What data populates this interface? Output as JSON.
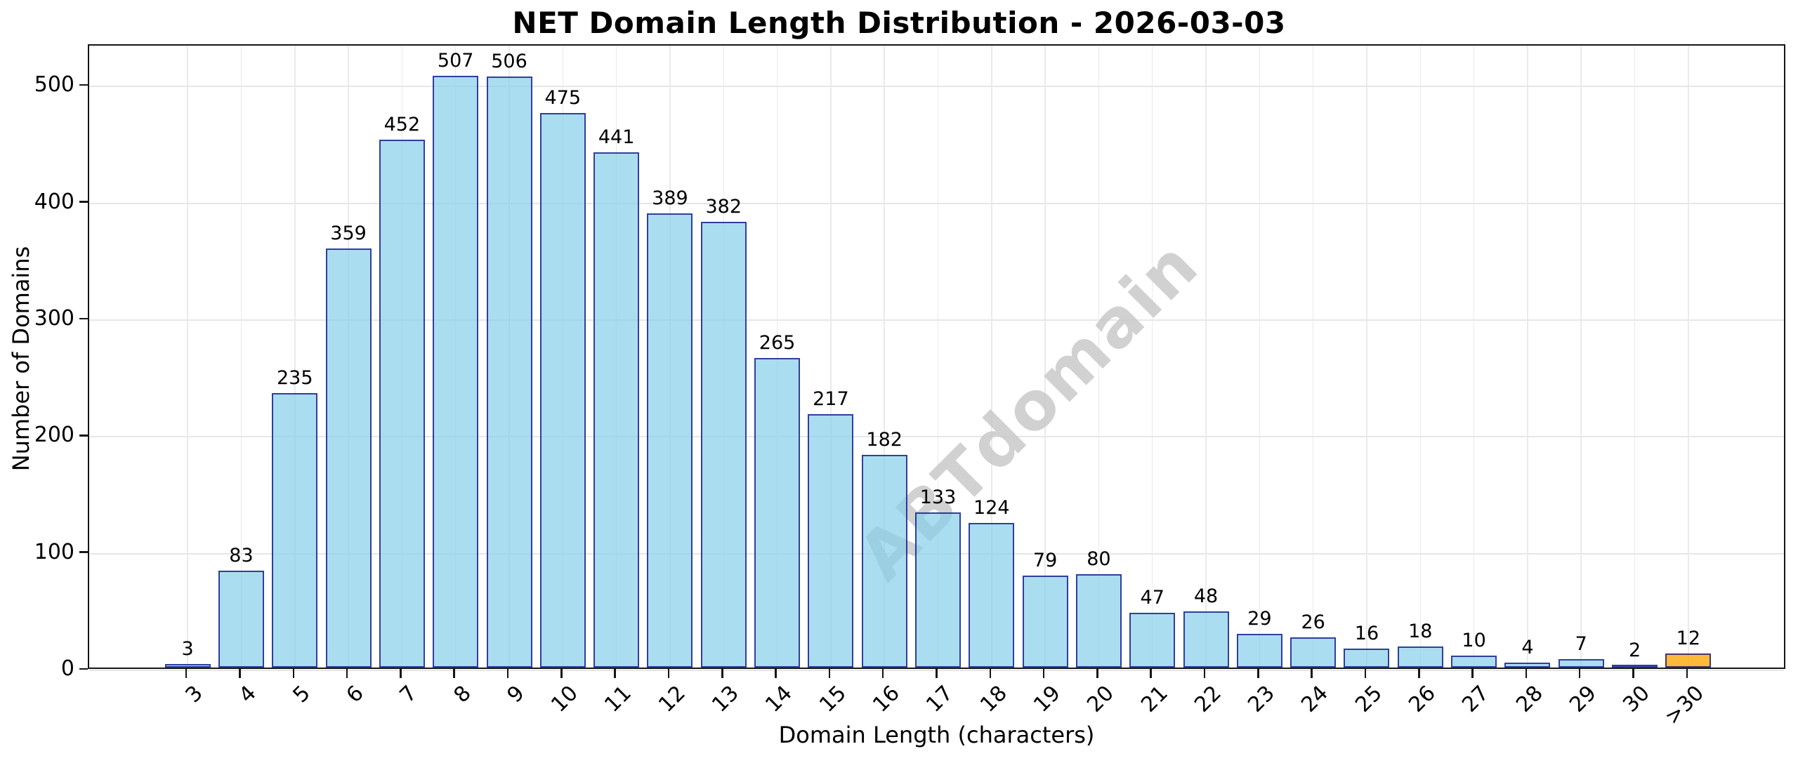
{
  "figure": {
    "title": "NET Domain Length Distribution - 2026-03-03",
    "watermark": "ABTdomain",
    "background": "#ffffff"
  },
  "axes": {
    "xlabel": "Domain Length (characters)",
    "ylabel": "Number of Domains",
    "ytick_labels": [
      "0",
      "100",
      "200",
      "300",
      "400",
      "500"
    ]
  },
  "chart_data": {
    "type": "bar",
    "title": "NET Domain Length Distribution - 2026-03-03",
    "xlabel": "Domain Length (characters)",
    "ylabel": "Number of Domains",
    "categories": [
      "3",
      "4",
      "5",
      "6",
      "7",
      "8",
      "9",
      "10",
      "11",
      "12",
      "13",
      "14",
      "15",
      "16",
      "17",
      "18",
      "19",
      "20",
      "21",
      "22",
      "23",
      "24",
      "25",
      "26",
      "27",
      "28",
      "29",
      "30",
      ">30"
    ],
    "values": [
      3,
      83,
      235,
      359,
      452,
      507,
      506,
      475,
      441,
      389,
      382,
      265,
      217,
      182,
      133,
      124,
      79,
      80,
      47,
      48,
      29,
      26,
      16,
      18,
      10,
      4,
      7,
      2,
      12
    ],
    "yticks": [
      0,
      100,
      200,
      300,
      400,
      500
    ],
    "ylim": [
      0,
      535
    ],
    "grid": true,
    "bar_value_labels": true,
    "x_tick_rotation": 45,
    "legend": "none",
    "highlight_last_bar": true,
    "colors": {
      "bar_fill": "#abddf1",
      "bar_fill_rgba": "rgba(135,206,235,0.7)",
      "bar_edge": "#4747a3",
      "bar_edge_rgba": "rgba(0,0,128,0.72)",
      "highlight_fill": "#ffb938",
      "highlight_fill_rgba": "rgba(255,165,0,0.78)",
      "grid": "#e6e6e6",
      "axis": "#161616",
      "watermark": "#c9c9c9"
    },
    "watermark_text": "ABTdomain"
  }
}
